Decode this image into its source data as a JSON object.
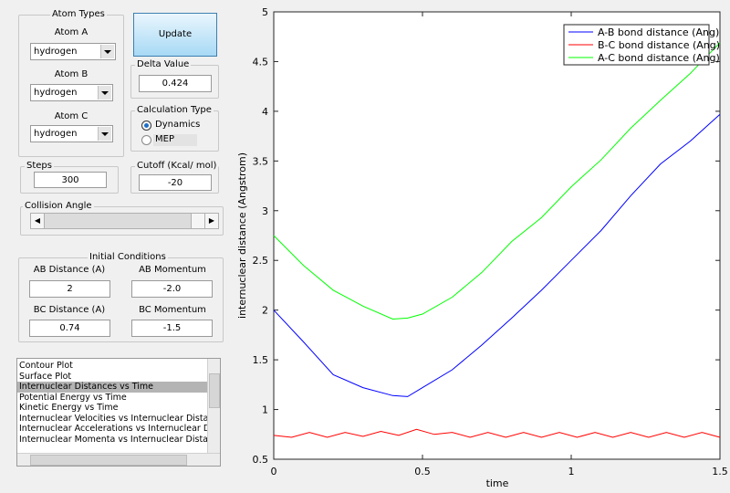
{
  "atom_types": {
    "title": "Atom Types",
    "atoms": [
      {
        "label": "Atom A",
        "value": "hydrogen"
      },
      {
        "label": "Atom B",
        "value": "hydrogen"
      },
      {
        "label": "Atom C",
        "value": "hydrogen"
      }
    ]
  },
  "update_button": "Update",
  "delta_value": {
    "title": "Delta Value",
    "value": "0.424"
  },
  "calculation_type": {
    "title": "Calculation Type",
    "options": [
      "Dynamics",
      "MEP"
    ]
  },
  "steps": {
    "title": "Steps",
    "value": "300"
  },
  "cutoff": {
    "title": "Cutoff (Kcal/ mol)",
    "value": "-20"
  },
  "collision_angle": {
    "title": "Collision Angle"
  },
  "initial_conditions": {
    "title": "Initial Conditions",
    "fields": [
      {
        "label": "AB Distance (A)",
        "value": "2"
      },
      {
        "label": "AB Momentum",
        "value": "-2.0"
      },
      {
        "label": "BC Distance (A)",
        "value": "0.74"
      },
      {
        "label": "BC Momentum",
        "value": "-1.5"
      }
    ]
  },
  "plot_list": {
    "items": [
      "Contour Plot",
      "Surface Plot",
      "Internuclear Distances vs Time",
      "Potential Energy vs Time",
      "Kinetic Energy vs Time",
      "Internuclear Velocities vs Internuclear Distance",
      "Internuclear Accelerations vs Internuclear Dista",
      "Internuclear Momenta vs Internuclear Distance"
    ],
    "selected": 2
  },
  "chart_data": {
    "type": "line",
    "xlabel": "time",
    "ylabel": "internuclear distance (Angstrom)",
    "xlim": [
      0,
      1.5
    ],
    "ylim": [
      0.5,
      5
    ],
    "xticks": [
      0,
      0.5,
      1,
      1.5
    ],
    "yticks": [
      0.5,
      1,
      1.5,
      2,
      2.5,
      3,
      3.5,
      4,
      4.5,
      5
    ],
    "legend": "upper right",
    "series": [
      {
        "name": "A-B bond distance (Ang)",
        "color": "#0000ff",
        "x": [
          0,
          0.1,
          0.2,
          0.3,
          0.4,
          0.45,
          0.5,
          0.6,
          0.7,
          0.8,
          0.9,
          1.0,
          1.1,
          1.2,
          1.3,
          1.4,
          1.5
        ],
        "values": [
          2.0,
          1.68,
          1.35,
          1.22,
          1.14,
          1.13,
          1.22,
          1.4,
          1.65,
          1.92,
          2.2,
          2.5,
          2.8,
          3.15,
          3.47,
          3.7,
          3.97
        ]
      },
      {
        "name": "B-C bond distance (Ang)",
        "color": "#ff0000",
        "x": [
          0,
          0.06,
          0.12,
          0.18,
          0.24,
          0.3,
          0.36,
          0.42,
          0.48,
          0.54,
          0.6,
          0.66,
          0.72,
          0.78,
          0.84,
          0.9,
          0.96,
          1.02,
          1.08,
          1.14,
          1.2,
          1.26,
          1.32,
          1.38,
          1.44,
          1.5
        ],
        "values": [
          0.74,
          0.72,
          0.77,
          0.72,
          0.77,
          0.73,
          0.78,
          0.74,
          0.8,
          0.75,
          0.77,
          0.72,
          0.77,
          0.72,
          0.77,
          0.72,
          0.77,
          0.72,
          0.77,
          0.72,
          0.77,
          0.72,
          0.77,
          0.72,
          0.77,
          0.72
        ]
      },
      {
        "name": "A-C bond distance (Ang)",
        "color": "#00ff00",
        "x": [
          0,
          0.1,
          0.2,
          0.3,
          0.4,
          0.45,
          0.5,
          0.6,
          0.7,
          0.8,
          0.9,
          1.0,
          1.1,
          1.2,
          1.3,
          1.4,
          1.5
        ],
        "values": [
          2.75,
          2.45,
          2.2,
          2.04,
          1.91,
          1.92,
          1.96,
          2.13,
          2.38,
          2.69,
          2.93,
          3.24,
          3.51,
          3.83,
          4.11,
          4.38,
          4.69
        ]
      }
    ]
  }
}
